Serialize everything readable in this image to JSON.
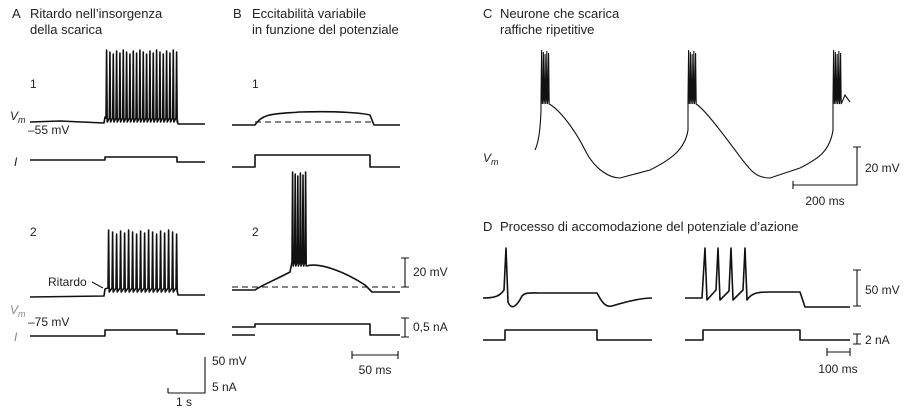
{
  "panels": [
    {
      "letter": "A",
      "title": [
        "Ritardo nell’insorgenza",
        "della scarica"
      ],
      "traces": [
        {
          "number": "1",
          "vm": "V",
          "vm_sub": "m",
          "potential": "–55 mV",
          "current": "I"
        },
        {
          "number": "2",
          "annotation": "Ritardo",
          "vm": "V",
          "vm_sub": "m",
          "potential": "–75 mV",
          "current": "I"
        }
      ],
      "scale": [
        "50 mV",
        "5 nA",
        "1 s"
      ]
    },
    {
      "letter": "B",
      "title": [
        "Eccitabilità variabile",
        "in funzione del potenziale"
      ],
      "traces": [
        {
          "number": "1"
        },
        {
          "number": "2"
        }
      ],
      "scale": [
        "20 mV",
        "0,5 nA",
        "50 ms"
      ]
    },
    {
      "letter": "C",
      "title": [
        "Neurone che scarica",
        "raffiche ripetitive"
      ],
      "traces": [
        {
          "vm": "V",
          "vm_sub": "m"
        }
      ],
      "scale": [
        "20 mV",
        "200 ms"
      ]
    },
    {
      "letter": "D",
      "title": [
        "Processo di accomodazione del potenziale d’azione"
      ],
      "scale": [
        "50 mV",
        "2 nA",
        "100 ms"
      ]
    }
  ]
}
